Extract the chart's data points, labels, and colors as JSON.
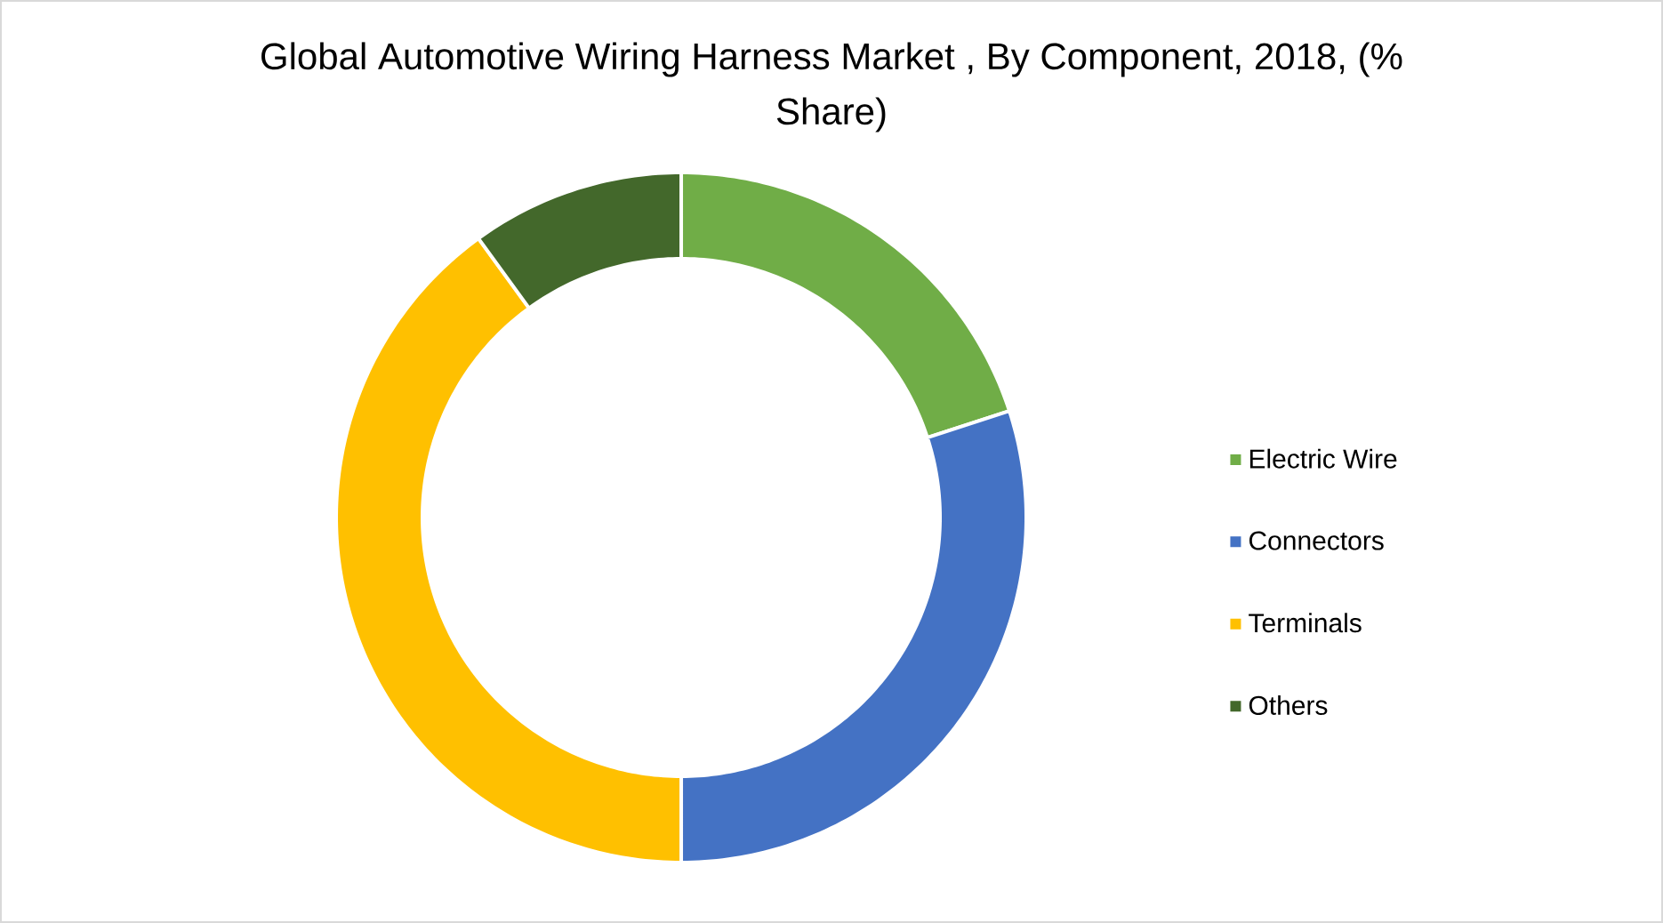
{
  "chart_data": {
    "type": "donut",
    "title": "Global Automotive Wiring Harness Market , By Component, 2018, (% Share)",
    "categories": [
      "Electric Wire",
      "Connectors",
      "Terminals",
      "Others"
    ],
    "values": [
      20,
      30,
      40,
      10
    ],
    "colors": [
      "#70ad47",
      "#4472c4",
      "#ffc000",
      "#43682b"
    ],
    "legend": "right"
  }
}
